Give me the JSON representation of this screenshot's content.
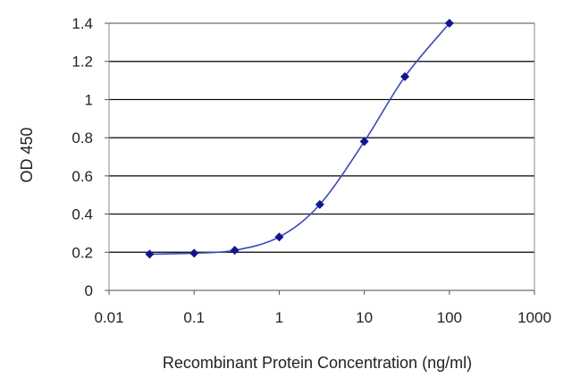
{
  "chart_data": {
    "type": "line",
    "title": "",
    "xlabel": "Recombinant Protein Concentration (ng/ml)",
    "ylabel": "OD 450",
    "x_scale": "log",
    "xlim": [
      0.01,
      1000
    ],
    "ylim": [
      0,
      1.4
    ],
    "x_ticks": [
      "0.01",
      "0.1",
      "1",
      "10",
      "100",
      "1000"
    ],
    "y_ticks": [
      "0",
      "0.2",
      "0.4",
      "0.6",
      "0.8",
      "1",
      "1.2",
      "1.4"
    ],
    "grid": "horizontal",
    "series": [
      {
        "x": [
          0.03,
          0.1,
          0.3,
          1,
          3,
          10,
          30,
          100
        ],
        "y": [
          0.19,
          0.195,
          0.21,
          0.28,
          0.45,
          0.78,
          1.12,
          1.4
        ]
      }
    ],
    "colors": {
      "line": "#3b48b8",
      "marker": "#12158f",
      "grid": "#000000"
    }
  }
}
